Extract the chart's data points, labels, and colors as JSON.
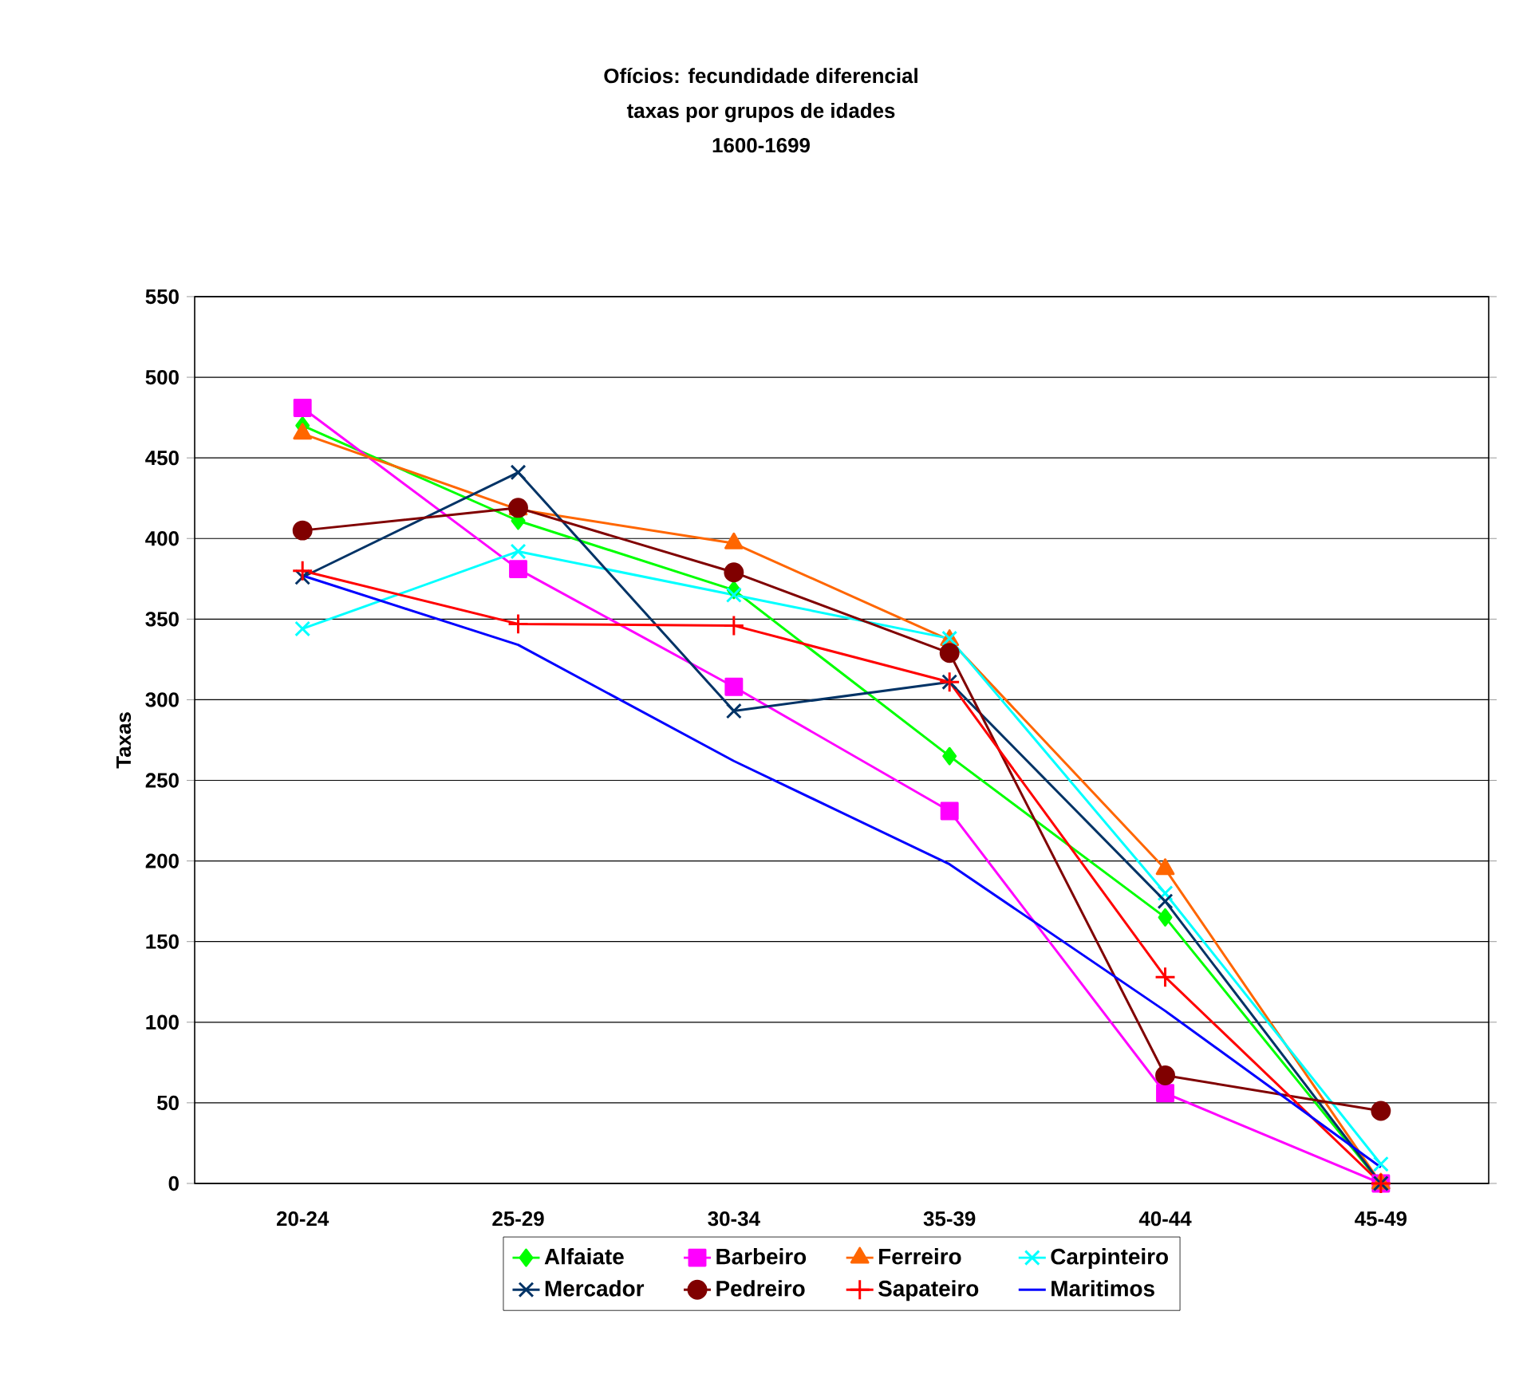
{
  "chart_data": {
    "type": "line",
    "title": "Ofícios: fecundidade diferencial",
    "subtitle": "taxas por grupos de idades",
    "annotations": [
      "1600-1699"
    ],
    "ylabel": "Taxas",
    "categories": [
      "20-24",
      "25-29",
      "30-34",
      "35-39",
      "40-44",
      "45-49"
    ],
    "ylim": [
      0,
      550
    ],
    "yticks": [
      0,
      50,
      100,
      150,
      200,
      250,
      300,
      350,
      400,
      450,
      500,
      550
    ],
    "grid": "y",
    "legend": "bottom",
    "line_style": "solid",
    "series": [
      {
        "name": "Alfaiate",
        "color": "#00ff00",
        "marker": "diamond",
        "values": [
          470,
          411,
          368,
          265,
          165,
          0
        ]
      },
      {
        "name": "Barbeiro",
        "color": "#ff00ff",
        "marker": "square",
        "values": [
          481,
          381,
          308,
          231,
          56,
          0
        ]
      },
      {
        "name": "Ferreiro",
        "color": "#ff6600",
        "marker": "triangle",
        "values": [
          465,
          418,
          397,
          337,
          195,
          0
        ]
      },
      {
        "name": "Carpinteiro",
        "color": "#00ffff",
        "marker": "cross",
        "values": [
          344,
          392,
          365,
          338,
          180,
          12
        ]
      },
      {
        "name": "Mercador",
        "color": "#003366",
        "marker": "cross",
        "values": [
          376,
          441,
          293,
          311,
          175,
          0
        ]
      },
      {
        "name": "Pedreiro",
        "color": "#800000",
        "marker": "circle",
        "values": [
          405,
          419,
          379,
          329,
          67,
          45
        ]
      },
      {
        "name": "Sapateiro",
        "color": "#ff0000",
        "marker": "plus",
        "values": [
          380,
          347,
          346,
          311,
          128,
          0
        ]
      },
      {
        "name": "Maritimos",
        "color": "#0000ff",
        "marker": "none",
        "values": [
          377,
          334,
          262,
          198,
          107,
          10
        ]
      }
    ]
  }
}
